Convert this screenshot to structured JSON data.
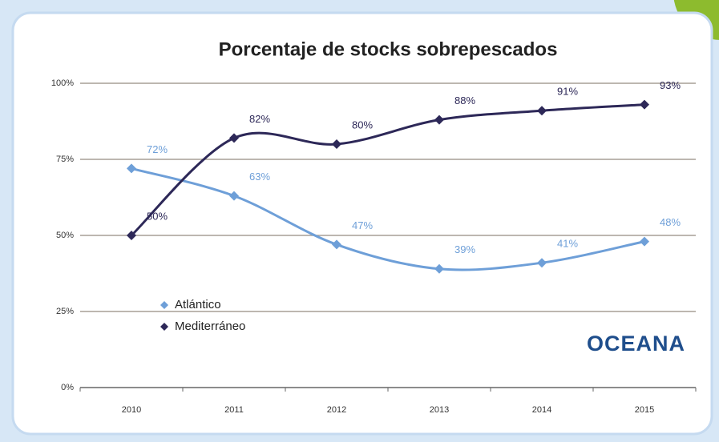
{
  "chart_data": {
    "type": "line",
    "title": "Porcentaje de stocks sobrepescados",
    "categories": [
      "2010",
      "2011",
      "2012",
      "2013",
      "2014",
      "2015"
    ],
    "series": [
      {
        "name": "Atlántico",
        "color": "#6e9fd8",
        "values": [
          72,
          63,
          47,
          39,
          41,
          48
        ],
        "value_labels": [
          "72%",
          "63%",
          "47%",
          "39%",
          "41%",
          "48%"
        ]
      },
      {
        "name": "Mediterráneo",
        "color": "#2d2858",
        "values": [
          50,
          82,
          80,
          88,
          91,
          93
        ],
        "value_labels": [
          "50%",
          "82%",
          "80%",
          "88%",
          "91%",
          "93%"
        ]
      }
    ],
    "ylim": [
      0,
      100
    ],
    "yticks": [
      {
        "value": 0,
        "label": "0%"
      },
      {
        "value": 25,
        "label": "25%"
      },
      {
        "value": 50,
        "label": "50%"
      },
      {
        "value": 75,
        "label": "75%"
      },
      {
        "value": 100,
        "label": "100%"
      }
    ],
    "grid": true,
    "smooth": true,
    "legend": "lower left",
    "logo": "OCEANA"
  }
}
